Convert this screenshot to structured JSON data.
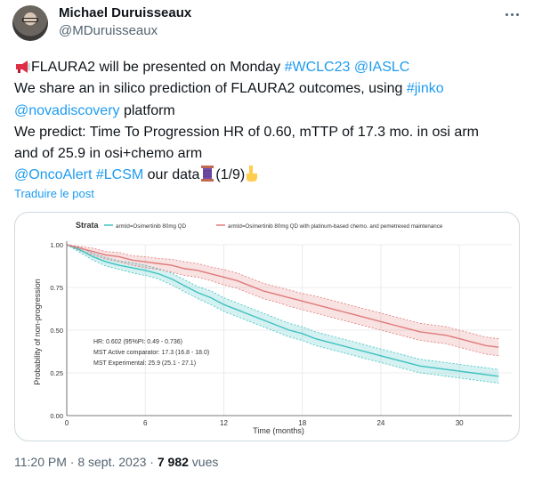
{
  "author": {
    "display_name": "Michael Duruisseaux",
    "handle": "@MDuruisseaux"
  },
  "tweet": {
    "line1": {
      "emoji": "megaphone",
      "text": "FLAURA2 will be presented on Monday ",
      "tag1": "#WCLC23",
      "space": " ",
      "tag2": "@IASLC"
    },
    "line2": {
      "text": "We share an in silico prediction of FLAURA2 outcomes, using ",
      "tag": "#jinko"
    },
    "line3": {
      "tag": "@novadiscovery",
      "text": " platform"
    },
    "line4": {
      "text": "We predict: Time To Progression HR of 0.60, mTTP of 17.3 mo. in osi arm"
    },
    "line5": {
      "text": "and of 25.9 in osi+chemo arm"
    },
    "line6": {
      "tag1": "@OncoAlert",
      "space": " ",
      "tag2": "#LCSM",
      "text": " our data",
      "suffix": "(1/9)"
    }
  },
  "translate_label": "Traduire le post",
  "meta": {
    "time": "11:20 PM",
    "sep1": " · ",
    "date": "8 sept. 2023",
    "sep2": " · ",
    "views": "7 982",
    "views_label": " vues"
  },
  "colors": {
    "link": "#1d9bf0",
    "osi": "#3fc1c0",
    "osi_chemo": "#e07a7a"
  },
  "chart_data": {
    "type": "line",
    "legend_title": "Strata",
    "xlabel": "Time (months)",
    "ylabel": "Probability of non-progression",
    "xlim": [
      0,
      34
    ],
    "ylim": [
      0,
      1.0
    ],
    "x_ticks": [
      "0",
      "6",
      "12",
      "18",
      "24",
      "30"
    ],
    "y_ticks": [
      "0.00",
      "0.25",
      "0.50",
      "0.75",
      "1.00"
    ],
    "grid": true,
    "legend_position": "top",
    "annotation": {
      "hr": "HR: 0.602 (95%PI: 0.49 - 0.736)",
      "mst_active": "MST Active comparator: 17.3 (16.8 - 18.0)",
      "mst_experimental": "MST Experimental: 25.9 (25.1 - 27.1)"
    },
    "series": [
      {
        "name": "armId=Osimertinib 80mg QD",
        "color": "#3fc1c0",
        "x": [
          0,
          1,
          2,
          3,
          4,
          5,
          6,
          7,
          8,
          9,
          10,
          11,
          12,
          13,
          14,
          15,
          16,
          17,
          18,
          19,
          20,
          21,
          22,
          23,
          24,
          25,
          26,
          27,
          28,
          29,
          30,
          31,
          32,
          33
        ],
        "y": [
          1.0,
          0.97,
          0.93,
          0.9,
          0.88,
          0.865,
          0.85,
          0.83,
          0.8,
          0.76,
          0.72,
          0.69,
          0.65,
          0.62,
          0.59,
          0.56,
          0.53,
          0.5,
          0.48,
          0.45,
          0.43,
          0.41,
          0.39,
          0.37,
          0.35,
          0.33,
          0.31,
          0.29,
          0.28,
          0.27,
          0.26,
          0.25,
          0.24,
          0.23
        ],
        "lower": [
          1.0,
          0.955,
          0.91,
          0.875,
          0.855,
          0.835,
          0.82,
          0.8,
          0.765,
          0.725,
          0.685,
          0.65,
          0.61,
          0.58,
          0.55,
          0.52,
          0.49,
          0.46,
          0.44,
          0.41,
          0.39,
          0.37,
          0.35,
          0.33,
          0.31,
          0.29,
          0.27,
          0.25,
          0.24,
          0.23,
          0.22,
          0.21,
          0.2,
          0.19
        ],
        "upper": [
          1.0,
          0.985,
          0.95,
          0.925,
          0.905,
          0.895,
          0.88,
          0.86,
          0.835,
          0.795,
          0.755,
          0.73,
          0.69,
          0.66,
          0.63,
          0.6,
          0.57,
          0.54,
          0.52,
          0.49,
          0.47,
          0.45,
          0.43,
          0.41,
          0.39,
          0.37,
          0.35,
          0.33,
          0.32,
          0.31,
          0.3,
          0.29,
          0.28,
          0.27
        ]
      },
      {
        "name": "armId=Osimertinib 80mg QD with platinum-based chemo. and pemetrexed maintenance",
        "color": "#e07a7a",
        "x": [
          0,
          1,
          2,
          3,
          4,
          5,
          6,
          7,
          8,
          9,
          10,
          11,
          12,
          13,
          14,
          15,
          16,
          17,
          18,
          19,
          20,
          21,
          22,
          23,
          24,
          25,
          26,
          27,
          28,
          29,
          30,
          31,
          32,
          33
        ],
        "y": [
          1.0,
          0.98,
          0.96,
          0.94,
          0.93,
          0.91,
          0.9,
          0.89,
          0.88,
          0.86,
          0.85,
          0.83,
          0.81,
          0.79,
          0.76,
          0.73,
          0.71,
          0.69,
          0.67,
          0.65,
          0.63,
          0.61,
          0.59,
          0.57,
          0.55,
          0.53,
          0.51,
          0.49,
          0.48,
          0.47,
          0.45,
          0.43,
          0.41,
          0.4
        ],
        "lower": [
          1.0,
          0.965,
          0.94,
          0.915,
          0.9,
          0.88,
          0.865,
          0.855,
          0.84,
          0.82,
          0.81,
          0.79,
          0.765,
          0.745,
          0.715,
          0.685,
          0.665,
          0.64,
          0.62,
          0.6,
          0.58,
          0.56,
          0.54,
          0.52,
          0.5,
          0.48,
          0.46,
          0.44,
          0.43,
          0.42,
          0.4,
          0.38,
          0.36,
          0.35
        ],
        "upper": [
          1.0,
          0.99,
          0.98,
          0.96,
          0.955,
          0.935,
          0.93,
          0.92,
          0.915,
          0.9,
          0.89,
          0.87,
          0.855,
          0.835,
          0.805,
          0.775,
          0.755,
          0.735,
          0.715,
          0.7,
          0.68,
          0.66,
          0.64,
          0.62,
          0.6,
          0.58,
          0.56,
          0.54,
          0.53,
          0.52,
          0.5,
          0.48,
          0.46,
          0.45
        ]
      }
    ]
  }
}
